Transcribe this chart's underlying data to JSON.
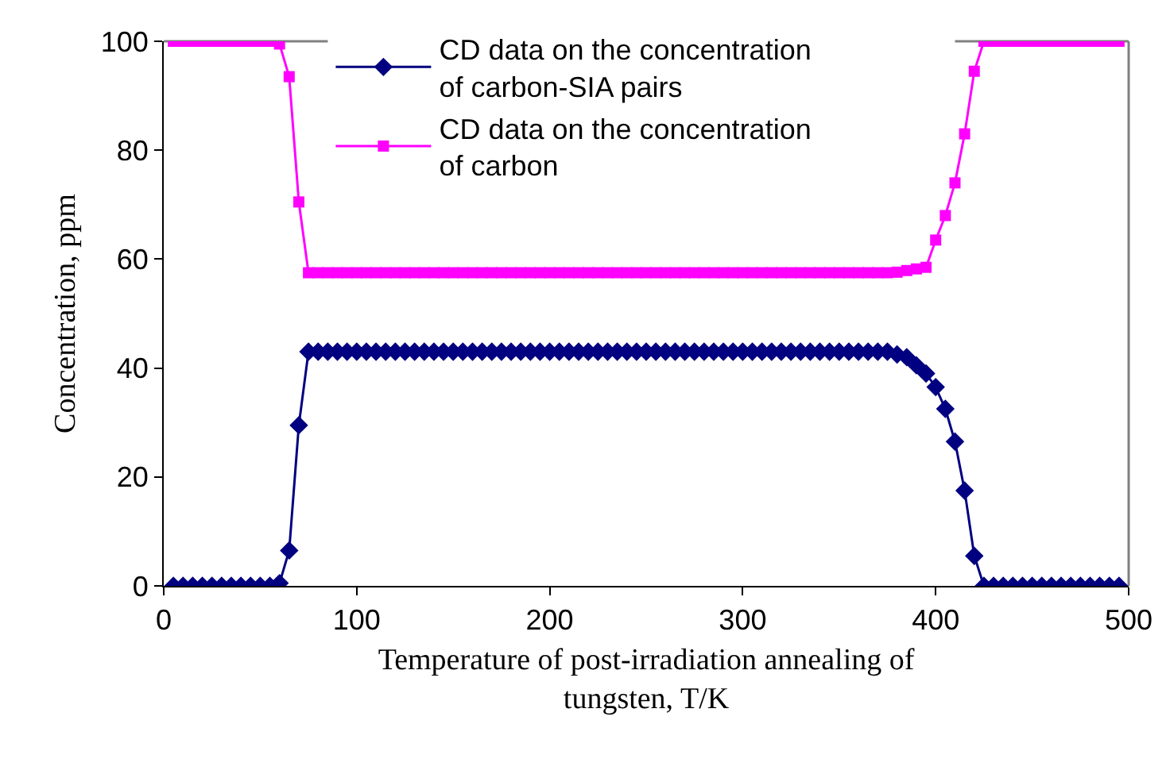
{
  "chart_data": {
    "type": "line",
    "xlabel": "Temperature of post-irradiation annealing of tungsten, T/K",
    "ylabel": "Concentration, ppm",
    "x": [
      5,
      10,
      15,
      20,
      25,
      30,
      35,
      40,
      45,
      50,
      55,
      60,
      65,
      70,
      75,
      80,
      85,
      90,
      95,
      100,
      105,
      110,
      115,
      120,
      125,
      130,
      135,
      140,
      145,
      150,
      155,
      160,
      165,
      170,
      175,
      180,
      185,
      190,
      195,
      200,
      205,
      210,
      215,
      220,
      225,
      230,
      235,
      240,
      245,
      250,
      255,
      260,
      265,
      270,
      275,
      280,
      285,
      290,
      295,
      300,
      305,
      310,
      315,
      320,
      325,
      330,
      335,
      340,
      345,
      350,
      355,
      360,
      365,
      370,
      375,
      380,
      385,
      390,
      395,
      400,
      405,
      410,
      415,
      420,
      425,
      430,
      435,
      440,
      445,
      450,
      455,
      460,
      465,
      470,
      475,
      480,
      485,
      490,
      495
    ],
    "series": [
      {
        "name": "CD data on the concentration of carbon-SIA pairs",
        "color": "#000080",
        "marker": "diamond",
        "values": [
          0,
          0,
          0,
          0,
          0,
          0,
          0,
          0,
          0,
          0,
          0,
          0.5,
          6.5,
          29.5,
          43,
          43,
          43,
          43,
          43,
          43,
          43,
          43,
          43,
          43,
          43,
          43,
          43,
          43,
          43,
          43,
          43,
          43,
          43,
          43,
          43,
          43,
          43,
          43,
          43,
          43,
          43,
          43,
          43,
          43,
          43,
          43,
          43,
          43,
          43,
          43,
          43,
          43,
          43,
          43,
          43,
          43,
          43,
          43,
          43,
          43,
          43,
          43,
          43,
          43,
          43,
          43,
          43,
          43,
          43,
          43,
          43,
          43,
          43,
          43,
          43,
          42.5,
          42,
          40.5,
          39,
          36.5,
          32.5,
          26.5,
          17.5,
          5.5,
          0,
          0,
          0,
          0,
          0,
          0,
          0,
          0,
          0,
          0,
          0,
          0,
          0,
          0,
          0
        ]
      },
      {
        "name": "CD data on the concentration of carbon",
        "color": "#ff00ff",
        "marker": "square",
        "values": [
          100,
          100,
          100,
          100,
          100,
          100,
          100,
          100,
          100,
          100,
          100,
          99.5,
          93.5,
          70.5,
          57.5,
          57.5,
          57.5,
          57.5,
          57.5,
          57.5,
          57.5,
          57.5,
          57.5,
          57.5,
          57.5,
          57.5,
          57.5,
          57.5,
          57.5,
          57.5,
          57.5,
          57.5,
          57.5,
          57.5,
          57.5,
          57.5,
          57.5,
          57.5,
          57.5,
          57.5,
          57.5,
          57.5,
          57.5,
          57.5,
          57.5,
          57.5,
          57.5,
          57.5,
          57.5,
          57.5,
          57.5,
          57.5,
          57.5,
          57.5,
          57.5,
          57.5,
          57.5,
          57.5,
          57.5,
          57.5,
          57.5,
          57.5,
          57.5,
          57.5,
          57.5,
          57.5,
          57.5,
          57.5,
          57.5,
          57.5,
          57.5,
          57.5,
          57.5,
          57.5,
          57.5,
          57.6,
          57.9,
          58.2,
          58.5,
          63.5,
          68,
          74,
          83,
          94.5,
          100,
          100,
          100,
          100,
          100,
          100,
          100,
          100,
          100,
          100,
          100,
          100,
          100,
          100,
          100
        ]
      }
    ],
    "xlim": [
      0,
      500
    ],
    "xticks": [
      0,
      100,
      200,
      300,
      400,
      500
    ],
    "ylim": [
      0,
      100
    ],
    "yticks": [
      0,
      20,
      40,
      60,
      80,
      100
    ],
    "grid": false,
    "legend": "top",
    "line_style": "solid"
  }
}
